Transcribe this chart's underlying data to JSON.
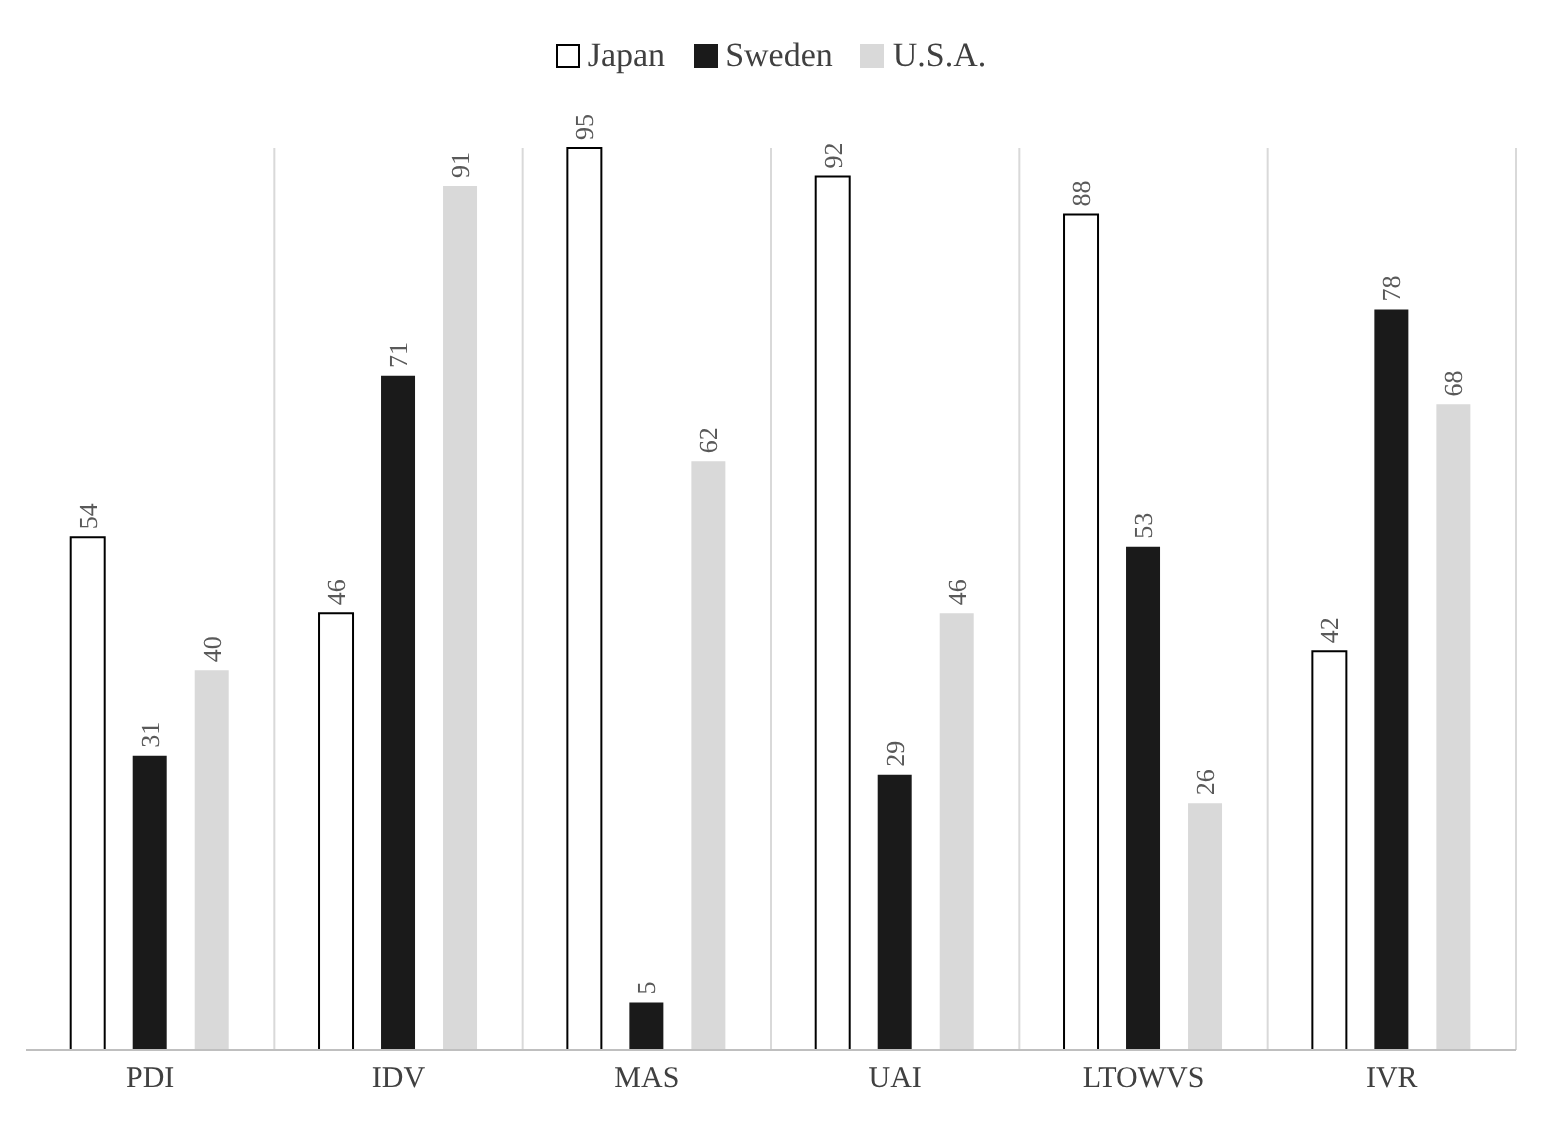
{
  "chart_data": {
    "type": "bar",
    "categories": [
      "PDI",
      "IDV",
      "MAS",
      "UAI",
      "LTOWVS",
      "IVR"
    ],
    "series": [
      {
        "name": "Japan",
        "color": "#ffffff",
        "values": [
          54,
          46,
          95,
          92,
          88,
          42
        ]
      },
      {
        "name": "Sweden",
        "color": "#1a1a1a",
        "values": [
          31,
          71,
          5,
          29,
          53,
          78
        ]
      },
      {
        "name": "U.S.A.",
        "color": "#d9d9d9",
        "values": [
          40,
          91,
          62,
          46,
          26,
          68
        ]
      }
    ],
    "data_labels": true,
    "legend": "top",
    "grid": "x"
  }
}
